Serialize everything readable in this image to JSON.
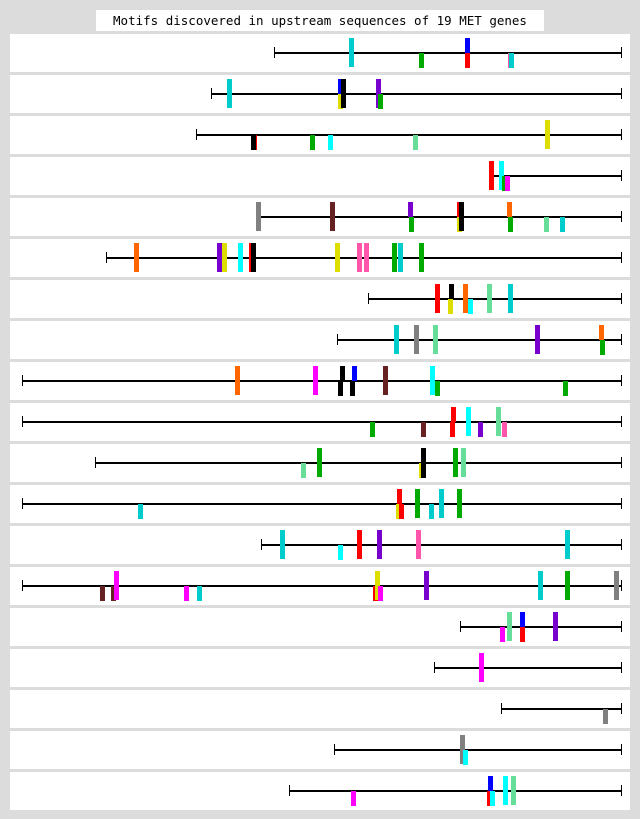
{
  "title": "Motifs discovered in upstream sequences of 19 MET genes",
  "palette": {
    "cyan": "#00cccc",
    "green": "#00aa00",
    "blue": "#0000ff",
    "red": "#ff0000",
    "pink": "#ff55aa",
    "yellow": "#dddd00",
    "black": "#000000",
    "purple": "#7700cc",
    "aquamarine": "#66dd99",
    "aqua": "#00ffff",
    "orange": "#ff6600",
    "gray": "#808080",
    "brown": "#662222",
    "magenta": "#ff00ff"
  },
  "sequences": [
    {
      "length": 347,
      "motifs": [
        {
          "pos": 75,
          "color": "cyan",
          "strand": "both"
        },
        {
          "pos": 145,
          "color": "green",
          "strand": "bottom"
        },
        {
          "pos": 191,
          "color": "blue",
          "strand": "top"
        },
        {
          "pos": 191,
          "color": "red",
          "strand": "bottom"
        },
        {
          "pos": 234,
          "color": "pink",
          "strand": "bottom"
        },
        {
          "pos": 235,
          "color": "cyan",
          "strand": "bottom"
        }
      ]
    },
    {
      "length": 410,
      "motifs": [
        {
          "pos": 16,
          "color": "cyan",
          "strand": "both"
        },
        {
          "pos": 127,
          "color": "blue",
          "strand": "top"
        },
        {
          "pos": 127,
          "color": "yellow",
          "strand": "bottom"
        },
        {
          "pos": 130,
          "color": "black",
          "strand": "both"
        },
        {
          "pos": 165,
          "color": "purple",
          "strand": "both"
        },
        {
          "pos": 167,
          "color": "green",
          "strand": "bottom"
        }
      ]
    },
    {
      "length": 425,
      "motifs": [
        {
          "pos": 56,
          "color": "red",
          "strand": "bottom"
        },
        {
          "pos": 55,
          "color": "black",
          "strand": "bottom"
        },
        {
          "pos": 114,
          "color": "green",
          "strand": "bottom"
        },
        {
          "pos": 132,
          "color": "aqua",
          "strand": "bottom"
        },
        {
          "pos": 217,
          "color": "aquamarine",
          "strand": "bottom"
        },
        {
          "pos": 349,
          "color": "yellow",
          "strand": "both"
        }
      ]
    },
    {
      "length": 132,
      "motifs": [
        {
          "pos": 0,
          "color": "red",
          "strand": "both"
        },
        {
          "pos": 10,
          "color": "aqua",
          "strand": "both"
        },
        {
          "pos": 13,
          "color": "green",
          "strand": "bottom"
        },
        {
          "pos": 16,
          "color": "magenta",
          "strand": "bottom"
        }
      ]
    },
    {
      "length": 365,
      "motifs": [
        {
          "pos": 0,
          "color": "gray",
          "strand": "both"
        },
        {
          "pos": 74,
          "color": "brown",
          "strand": "both"
        },
        {
          "pos": 152,
          "color": "purple",
          "strand": "top"
        },
        {
          "pos": 153,
          "color": "green",
          "strand": "bottom"
        },
        {
          "pos": 201,
          "color": "red",
          "strand": "top"
        },
        {
          "pos": 201,
          "color": "yellow",
          "strand": "bottom"
        },
        {
          "pos": 203,
          "color": "black",
          "strand": "both"
        },
        {
          "pos": 251,
          "color": "orange",
          "strand": "top"
        },
        {
          "pos": 252,
          "color": "green",
          "strand": "bottom"
        },
        {
          "pos": 288,
          "color": "aquamarine",
          "strand": "bottom"
        },
        {
          "pos": 304,
          "color": "cyan",
          "strand": "bottom"
        }
      ]
    },
    {
      "length": 515,
      "motifs": [
        {
          "pos": 28,
          "color": "orange",
          "strand": "both"
        },
        {
          "pos": 111,
          "color": "purple",
          "strand": "both"
        },
        {
          "pos": 116,
          "color": "yellow",
          "strand": "both"
        },
        {
          "pos": 132,
          "color": "aqua",
          "strand": "both"
        },
        {
          "pos": 143,
          "color": "red",
          "strand": "both"
        },
        {
          "pos": 145,
          "color": "black",
          "strand": "both"
        },
        {
          "pos": 229,
          "color": "yellow",
          "strand": "both"
        },
        {
          "pos": 251,
          "color": "pink",
          "strand": "both"
        },
        {
          "pos": 258,
          "color": "pink",
          "strand": "both"
        },
        {
          "pos": 286,
          "color": "green",
          "strand": "both"
        },
        {
          "pos": 292,
          "color": "cyan",
          "strand": "both"
        },
        {
          "pos": 313,
          "color": "green",
          "strand": "both"
        }
      ]
    },
    {
      "length": 253,
      "motifs": [
        {
          "pos": 67,
          "color": "red",
          "strand": "both"
        },
        {
          "pos": 81,
          "color": "black",
          "strand": "top"
        },
        {
          "pos": 80,
          "color": "yellow",
          "strand": "bottom"
        },
        {
          "pos": 95,
          "color": "orange",
          "strand": "both"
        },
        {
          "pos": 100,
          "color": "aqua",
          "strand": "bottom"
        },
        {
          "pos": 119,
          "color": "aquamarine",
          "strand": "both"
        },
        {
          "pos": 140,
          "color": "cyan",
          "strand": "both"
        }
      ]
    },
    {
      "length": 284,
      "motifs": [
        {
          "pos": 57,
          "color": "cyan",
          "strand": "both"
        },
        {
          "pos": 77,
          "color": "gray",
          "strand": "both"
        },
        {
          "pos": 96,
          "color": "aquamarine",
          "strand": "both"
        },
        {
          "pos": 198,
          "color": "purple",
          "strand": "both"
        },
        {
          "pos": 262,
          "color": "orange",
          "strand": "top"
        },
        {
          "pos": 263,
          "color": "green",
          "strand": "bottom"
        }
      ]
    },
    {
      "length": 599,
      "motifs": [
        {
          "pos": 213,
          "color": "orange",
          "strand": "both"
        },
        {
          "pos": 291,
          "color": "magenta",
          "strand": "both"
        },
        {
          "pos": 318,
          "color": "black",
          "strand": "top"
        },
        {
          "pos": 316,
          "color": "black",
          "strand": "bottom"
        },
        {
          "pos": 330,
          "color": "blue",
          "strand": "top"
        },
        {
          "pos": 328,
          "color": "black",
          "strand": "bottom"
        },
        {
          "pos": 361,
          "color": "brown",
          "strand": "both"
        },
        {
          "pos": 408,
          "color": "aqua",
          "strand": "both"
        },
        {
          "pos": 413,
          "color": "green",
          "strand": "bottom"
        },
        {
          "pos": 541,
          "color": "green",
          "strand": "bottom"
        }
      ]
    },
    {
      "length": 599,
      "motifs": [
        {
          "pos": 348,
          "color": "green",
          "strand": "bottom"
        },
        {
          "pos": 399,
          "color": "brown",
          "strand": "bottom"
        },
        {
          "pos": 429,
          "color": "red",
          "strand": "top"
        },
        {
          "pos": 428,
          "color": "red",
          "strand": "bottom"
        },
        {
          "pos": 444,
          "color": "aqua",
          "strand": "both"
        },
        {
          "pos": 456,
          "color": "purple",
          "strand": "bottom"
        },
        {
          "pos": 474,
          "color": "aquamarine",
          "strand": "both"
        },
        {
          "pos": 480,
          "color": "pink",
          "strand": "bottom"
        }
      ]
    },
    {
      "length": 526,
      "motifs": [
        {
          "pos": 206,
          "color": "aquamarine",
          "strand": "bottom"
        },
        {
          "pos": 222,
          "color": "green",
          "strand": "both"
        },
        {
          "pos": 326,
          "color": "black",
          "strand": "top"
        },
        {
          "pos": 324,
          "color": "yellow",
          "strand": "bottom"
        },
        {
          "pos": 326,
          "color": "black",
          "strand": "bottom"
        },
        {
          "pos": 358,
          "color": "green",
          "strand": "both"
        },
        {
          "pos": 366,
          "color": "aquamarine",
          "strand": "both"
        }
      ]
    },
    {
      "length": 599,
      "motifs": [
        {
          "pos": 116,
          "color": "cyan",
          "strand": "bottom"
        },
        {
          "pos": 375,
          "color": "red",
          "strand": "top"
        },
        {
          "pos": 374,
          "color": "yellow",
          "strand": "bottom"
        },
        {
          "pos": 377,
          "color": "red",
          "strand": "bottom"
        },
        {
          "pos": 393,
          "color": "green",
          "strand": "both"
        },
        {
          "pos": 407,
          "color": "cyan",
          "strand": "bottom"
        },
        {
          "pos": 417,
          "color": "cyan",
          "strand": "both"
        },
        {
          "pos": 435,
          "color": "green",
          "strand": "both"
        }
      ]
    },
    {
      "length": 360,
      "motifs": [
        {
          "pos": 19,
          "color": "cyan",
          "strand": "both"
        },
        {
          "pos": 77,
          "color": "aqua",
          "strand": "bottom"
        },
        {
          "pos": 96,
          "color": "red",
          "strand": "both"
        },
        {
          "pos": 116,
          "color": "purple",
          "strand": "both"
        },
        {
          "pos": 155,
          "color": "pink",
          "strand": "both"
        },
        {
          "pos": 304,
          "color": "cyan",
          "strand": "both"
        }
      ]
    },
    {
      "length": 599,
      "motifs": [
        {
          "pos": 78,
          "color": "brown",
          "strand": "bottom"
        },
        {
          "pos": 89,
          "color": "brown",
          "strand": "bottom"
        },
        {
          "pos": 92,
          "color": "magenta",
          "strand": "both"
        },
        {
          "pos": 162,
          "color": "magenta",
          "strand": "bottom"
        },
        {
          "pos": 175,
          "color": "cyan",
          "strand": "bottom"
        },
        {
          "pos": 351,
          "color": "red",
          "strand": "bottom"
        },
        {
          "pos": 353,
          "color": "yellow",
          "strand": "both"
        },
        {
          "pos": 356,
          "color": "magenta",
          "strand": "bottom"
        },
        {
          "pos": 402,
          "color": "purple",
          "strand": "both"
        },
        {
          "pos": 516,
          "color": "cyan",
          "strand": "both"
        },
        {
          "pos": 543,
          "color": "green",
          "strand": "both"
        },
        {
          "pos": 592,
          "color": "gray",
          "strand": "both"
        }
      ]
    },
    {
      "length": 161,
      "motifs": [
        {
          "pos": 40,
          "color": "magenta",
          "strand": "bottom"
        },
        {
          "pos": 47,
          "color": "aquamarine",
          "strand": "both"
        },
        {
          "pos": 60,
          "color": "blue",
          "strand": "top"
        },
        {
          "pos": 60,
          "color": "red",
          "strand": "bottom"
        },
        {
          "pos": 93,
          "color": "purple",
          "strand": "both"
        }
      ]
    },
    {
      "length": 187,
      "motifs": [
        {
          "pos": 45,
          "color": "magenta",
          "strand": "both"
        }
      ]
    },
    {
      "length": 120,
      "motifs": [
        {
          "pos": 102,
          "color": "gray",
          "strand": "bottom"
        }
      ]
    },
    {
      "length": 287,
      "motifs": [
        {
          "pos": 126,
          "color": "gray",
          "strand": "both"
        },
        {
          "pos": 129,
          "color": "aqua",
          "strand": "bottom"
        }
      ]
    },
    {
      "length": 332,
      "motifs": [
        {
          "pos": 62,
          "color": "magenta",
          "strand": "bottom"
        },
        {
          "pos": 199,
          "color": "blue",
          "strand": "top"
        },
        {
          "pos": 198,
          "color": "red",
          "strand": "bottom"
        },
        {
          "pos": 201,
          "color": "aqua",
          "strand": "bottom"
        },
        {
          "pos": 214,
          "color": "aqua",
          "strand": "both"
        },
        {
          "pos": 222,
          "color": "aquamarine",
          "strand": "both"
        }
      ]
    }
  ]
}
